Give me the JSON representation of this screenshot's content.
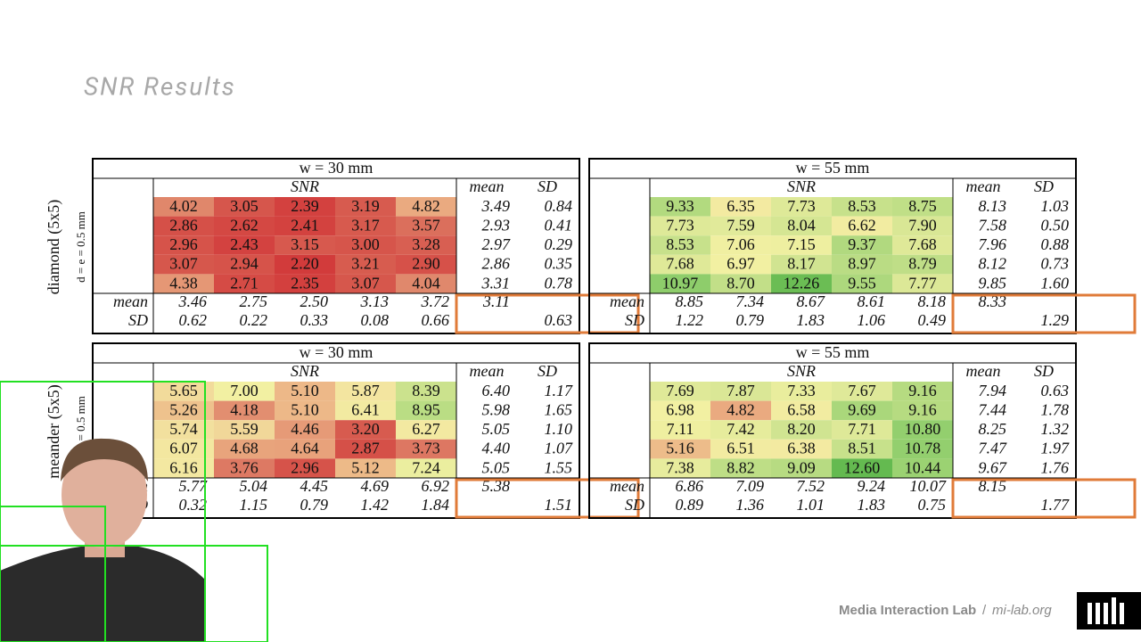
{
  "slide": {
    "title": "SNR Results",
    "side_labels": [
      {
        "title": "diamond (5x5)",
        "sub": "d = e = 0.5 mm"
      },
      {
        "title": "meander (5x5)",
        "sub": "d = e = 0.5 mm"
      }
    ],
    "tables": [
      {
        "header": "w = 30 mm",
        "snr_label": "SNR",
        "mean_label": "mean",
        "sd_label": "SD",
        "cells": [
          [
            "4.02",
            "3.05",
            "2.39",
            "3.19",
            "4.82"
          ],
          [
            "2.86",
            "2.62",
            "2.41",
            "3.17",
            "3.57"
          ],
          [
            "2.96",
            "2.43",
            "3.15",
            "3.00",
            "3.28"
          ],
          [
            "3.07",
            "2.94",
            "2.20",
            "3.21",
            "2.90"
          ],
          [
            "4.38",
            "2.71",
            "2.35",
            "3.07",
            "4.04"
          ]
        ],
        "row_mean": [
          "3.49",
          "2.93",
          "2.97",
          "2.86",
          "3.31"
        ],
        "row_sd": [
          "0.84",
          "0.41",
          "0.29",
          "0.35",
          "0.78"
        ],
        "col_mean": [
          "3.46",
          "2.75",
          "2.50",
          "3.13",
          "3.72"
        ],
        "col_sd": [
          "0.62",
          "0.22",
          "0.33",
          "0.08",
          "0.66"
        ],
        "total_mean": "3.11",
        "total_sd": "0.63"
      },
      {
        "header": "w = 55 mm",
        "snr_label": "SNR",
        "mean_label": "mean",
        "sd_label": "SD",
        "cells": [
          [
            "9.33",
            "6.35",
            "7.73",
            "8.53",
            "8.75"
          ],
          [
            "7.73",
            "7.59",
            "8.04",
            "6.62",
            "7.90"
          ],
          [
            "8.53",
            "7.06",
            "7.15",
            "9.37",
            "7.68"
          ],
          [
            "7.68",
            "6.97",
            "8.17",
            "8.97",
            "8.79"
          ],
          [
            "10.97",
            "8.70",
            "12.26",
            "9.55",
            "7.77"
          ]
        ],
        "row_mean": [
          "8.13",
          "7.58",
          "7.96",
          "8.12",
          "9.85"
        ],
        "row_sd": [
          "1.03",
          "0.50",
          "0.88",
          "0.73",
          "1.60"
        ],
        "col_mean": [
          "8.85",
          "7.34",
          "8.67",
          "8.61",
          "8.18"
        ],
        "col_sd": [
          "1.22",
          "0.79",
          "1.83",
          "1.06",
          "0.49"
        ],
        "total_mean": "8.33",
        "total_sd": "1.29"
      },
      {
        "header": "w = 30 mm",
        "snr_label": "SNR",
        "mean_label": "mean",
        "sd_label": "SD",
        "cells": [
          [
            "5.65",
            "7.00",
            "5.10",
            "5.87",
            "8.39"
          ],
          [
            "5.26",
            "4.18",
            "5.10",
            "6.41",
            "8.95"
          ],
          [
            "5.74",
            "5.59",
            "4.46",
            "3.20",
            "6.27"
          ],
          [
            "6.07",
            "4.68",
            "4.64",
            "2.87",
            "3.73"
          ],
          [
            "6.16",
            "3.76",
            "2.96",
            "5.12",
            "7.24"
          ]
        ],
        "row_mean": [
          "6.40",
          "5.98",
          "5.05",
          "4.40",
          "5.05"
        ],
        "row_sd": [
          "1.17",
          "1.65",
          "1.10",
          "1.07",
          "1.55"
        ],
        "col_mean": [
          "5.77",
          "5.04",
          "4.45",
          "4.69",
          "6.92"
        ],
        "col_sd": [
          "0.32",
          "1.15",
          "0.79",
          "1.42",
          "1.84"
        ],
        "total_mean": "5.38",
        "total_sd": "1.51"
      },
      {
        "header": "w = 55 mm",
        "snr_label": "SNR",
        "mean_label": "mean",
        "sd_label": "SD",
        "cells": [
          [
            "7.69",
            "7.87",
            "7.33",
            "7.67",
            "9.16"
          ],
          [
            "6.98",
            "4.82",
            "6.58",
            "9.69",
            "9.16"
          ],
          [
            "7.11",
            "7.42",
            "8.20",
            "7.71",
            "10.80"
          ],
          [
            "5.16",
            "6.51",
            "6.38",
            "8.51",
            "10.78"
          ],
          [
            "7.38",
            "8.82",
            "9.09",
            "12.60",
            "10.44"
          ]
        ],
        "row_mean": [
          "7.94",
          "7.44",
          "8.25",
          "7.47",
          "9.67"
        ],
        "row_sd": [
          "0.63",
          "1.78",
          "1.32",
          "1.97",
          "1.76"
        ],
        "col_mean": [
          "6.86",
          "7.09",
          "7.52",
          "9.24",
          "10.07"
        ],
        "col_sd": [
          "0.89",
          "1.36",
          "1.01",
          "1.83",
          "0.75"
        ],
        "total_mean": "8.15",
        "total_sd": "1.77"
      }
    ],
    "footer": {
      "lab": "Media Interaction Lab",
      "separator": "/",
      "site": "mi-lab.org"
    }
  }
}
